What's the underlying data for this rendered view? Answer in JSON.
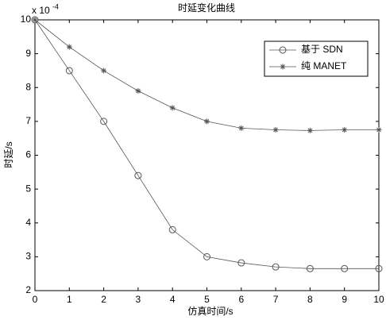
{
  "chart_data": {
    "type": "line",
    "title": "时延变化曲线",
    "x_label": "仿真时间/s",
    "y_label": "时延/s",
    "y_multiplier": "x 10",
    "y_multiplier_exponent": "-4",
    "x": [
      0,
      1,
      2,
      3,
      4,
      5,
      6,
      7,
      8,
      9,
      10
    ],
    "series": [
      {
        "name": "基于 SDN",
        "color": "#555555",
        "marker": "o",
        "values": [
          10,
          8.5,
          7,
          5.4,
          3.8,
          3.0,
          2.82,
          2.7,
          2.65,
          2.65,
          2.65
        ]
      },
      {
        "name": "纯 MANET",
        "color": "#555555",
        "marker": "*",
        "values": [
          10,
          9.2,
          8.5,
          7.9,
          7.4,
          7.0,
          6.8,
          6.75,
          6.73,
          6.75,
          6.75
        ]
      }
    ],
    "xlim": [
      0,
      10
    ],
    "ylim": [
      2,
      10
    ],
    "xticks": [
      0,
      1,
      2,
      3,
      4,
      5,
      6,
      7,
      8,
      9,
      10
    ],
    "yticks": [
      2,
      3,
      4,
      5,
      6,
      7,
      8,
      9,
      10
    ],
    "grid": false,
    "legend": "northeast"
  }
}
